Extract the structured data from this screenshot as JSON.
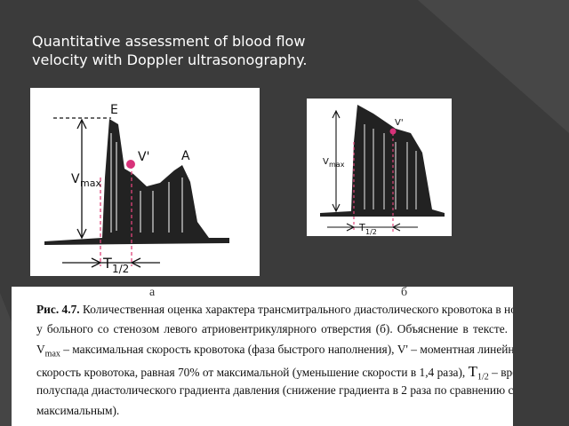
{
  "title": "Quantitative assessment of blood flow velocity with Doppler ultrasonography.",
  "figure_a": {
    "e": "E",
    "v_prime": "V'",
    "a": "A",
    "vmax_symbol": "V",
    "vmax_sub": "max",
    "t_symbol": "T",
    "t_sub": "1/2",
    "letter": "а"
  },
  "figure_b": {
    "v_prime": "V'",
    "vmax_symbol": "V",
    "vmax_sub": "max",
    "t_symbol": "T",
    "t_sub": "1/2",
    "letter": "б"
  },
  "caption": {
    "line0": {
      "label": "Рис. 4.7.",
      "text": "Количественная оценка характера трансмитрального диастолического кровотока в норме (а) и"
    },
    "line1": "у больного со стенозом левого атриовентрикулярного отверстия (б). Объяснение в тексте.",
    "line2": {
      "symbol": "V",
      "sub": "max",
      "text": "– максимальная скорость кровотока (фаза быстрого наполнения), V' – моментная линейная"
    },
    "line3": {
      "text": "скорость кровотока, равная 70% от максимальной (уменьшение скорости в 1,4 раза), ",
      "symbol": "T",
      "sub": "1/2",
      "tail": "– время"
    },
    "line4": "полуспада диастолического градиента давления (снижение градиента в 2 раза по сравнению с",
    "line5": "максимальным)."
  }
}
